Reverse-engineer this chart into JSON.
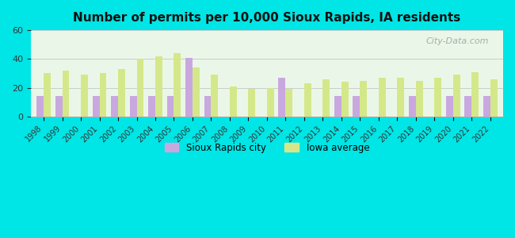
{
  "title": "Number of permits per 10,000 Sioux Rapids, IA residents",
  "years": [
    1998,
    1999,
    2000,
    2001,
    2002,
    2003,
    2004,
    2005,
    2006,
    2007,
    2008,
    2009,
    2010,
    2011,
    2012,
    2013,
    2014,
    2015,
    2016,
    2017,
    2018,
    2019,
    2020,
    2021,
    2022
  ],
  "city_values": [
    14,
    14,
    0,
    14,
    14,
    14,
    14,
    14,
    41,
    14,
    0,
    0,
    0,
    27,
    0,
    0,
    14,
    14,
    0,
    0,
    14,
    0,
    14,
    14,
    14
  ],
  "iowa_values": [
    30,
    32,
    29,
    30,
    33,
    40,
    42,
    44,
    34,
    29,
    21,
    19,
    20,
    19,
    23,
    26,
    24,
    25,
    27,
    27,
    25,
    27,
    29,
    31,
    26
  ],
  "city_color": "#c9a8e0",
  "iowa_color": "#d4e88a",
  "background_color": "#e0faf5",
  "plot_bg_top": "#e8f5e0",
  "plot_bg_bottom": "#f5ffe8",
  "ylim": [
    0,
    60
  ],
  "yticks": [
    0,
    20,
    40,
    60
  ],
  "legend_city": "Sioux Rapids city",
  "legend_iowa": "Iowa average",
  "watermark": "City-Data.com"
}
